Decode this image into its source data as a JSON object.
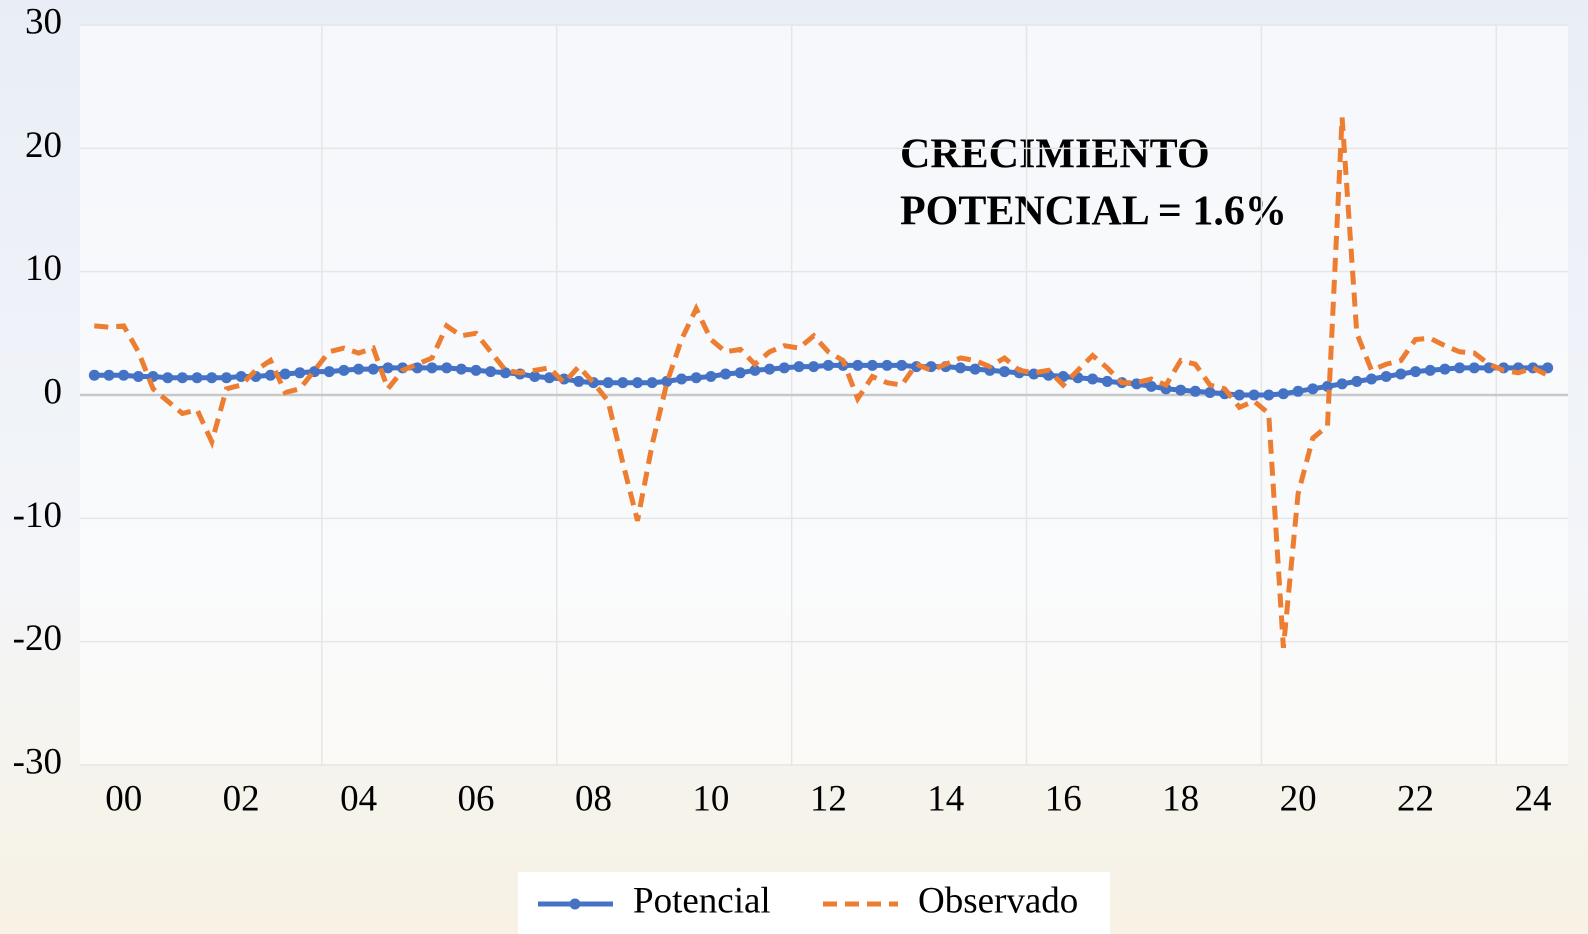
{
  "chart_data": {
    "type": "line",
    "categories": [
      null,
      null,
      "00",
      null,
      null,
      null,
      null,
      null,
      null,
      null,
      "02",
      null,
      null,
      null,
      null,
      null,
      null,
      null,
      "04",
      null,
      null,
      null,
      null,
      null,
      null,
      null,
      "06",
      null,
      null,
      null,
      null,
      null,
      null,
      null,
      "08",
      null,
      null,
      null,
      null,
      null,
      null,
      null,
      "10",
      null,
      null,
      null,
      null,
      null,
      null,
      null,
      "12",
      null,
      null,
      null,
      null,
      null,
      null,
      null,
      "14",
      null,
      null,
      null,
      null,
      null,
      null,
      null,
      "16",
      null,
      null,
      null,
      null,
      null,
      null,
      null,
      "18",
      null,
      null,
      null,
      null,
      null,
      null,
      null,
      "20",
      null,
      null,
      null,
      null,
      null,
      null,
      null,
      "22",
      null,
      null,
      null,
      null,
      null,
      null,
      null,
      "24",
      null
    ],
    "series": [
      {
        "name": "Potencial",
        "color": "#4472c4",
        "marker": true,
        "dash": false,
        "values": [
          1.6,
          1.6,
          1.6,
          1.5,
          1.5,
          1.4,
          1.4,
          1.4,
          1.4,
          1.4,
          1.5,
          1.5,
          1.6,
          1.7,
          1.8,
          1.9,
          1.9,
          2.0,
          2.1,
          2.1,
          2.2,
          2.2,
          2.2,
          2.2,
          2.2,
          2.1,
          2.0,
          1.9,
          1.8,
          1.7,
          1.5,
          1.4,
          1.3,
          1.1,
          1.0,
          1.0,
          1.0,
          1.0,
          1.0,
          1.1,
          1.3,
          1.4,
          1.5,
          1.7,
          1.8,
          2.0,
          2.1,
          2.2,
          2.3,
          2.3,
          2.4,
          2.4,
          2.4,
          2.4,
          2.4,
          2.4,
          2.3,
          2.3,
          2.3,
          2.2,
          2.1,
          2.0,
          1.9,
          1.8,
          1.7,
          1.6,
          1.5,
          1.4,
          1.3,
          1.1,
          1.0,
          0.9,
          0.7,
          0.5,
          0.4,
          0.3,
          0.2,
          0.1,
          0.0,
          0.0,
          0.0,
          0.1,
          0.3,
          0.5,
          0.7,
          0.9,
          1.1,
          1.3,
          1.5,
          1.7,
          1.9,
          2.0,
          2.1,
          2.2,
          2.2,
          2.2,
          2.2,
          2.2,
          2.2,
          2.2
        ]
      },
      {
        "name": "Observado",
        "color": "#ed7d31",
        "marker": false,
        "dash": true,
        "values": [
          5.6,
          5.5,
          5.6,
          3.5,
          0.5,
          -0.5,
          -1.5,
          -1.2,
          -3.8,
          0.5,
          0.8,
          2.0,
          2.8,
          0.2,
          0.5,
          2.0,
          3.5,
          3.8,
          3.4,
          3.8,
          0.5,
          2.0,
          2.5,
          3.0,
          5.6,
          4.8,
          5.0,
          3.5,
          2.0,
          1.8,
          2.0,
          2.2,
          1.0,
          2.3,
          1.0,
          -0.5,
          -5.5,
          -10.2,
          -4.0,
          1.0,
          4.5,
          7.0,
          4.5,
          3.5,
          3.7,
          2.5,
          3.5,
          4.0,
          3.8,
          4.8,
          3.5,
          2.8,
          -0.3,
          1.5,
          1.0,
          0.8,
          2.5,
          2.0,
          2.5,
          3.0,
          2.8,
          2.3,
          3.0,
          2.0,
          1.8,
          2.0,
          0.8,
          2.0,
          3.2,
          2.2,
          1.0,
          1.0,
          1.3,
          0.8,
          2.8,
          2.5,
          0.8,
          0.5,
          -1.0,
          -0.5,
          -1.5,
          -20.5,
          -8.0,
          -3.5,
          -2.5,
          22.5,
          5.0,
          2.0,
          2.5,
          2.8,
          4.5,
          4.6,
          4.0,
          3.5,
          3.4,
          2.5,
          2.0,
          1.8,
          2.2,
          1.6
        ]
      }
    ],
    "ylim": [
      -30,
      30
    ],
    "yticks": [
      -30,
      -20,
      -10,
      0,
      10,
      20,
      30
    ],
    "grid": true,
    "annotations": [
      "CRECIMIENTO",
      "POTENCIAL = 1.6%"
    ],
    "legend": "bottom"
  }
}
